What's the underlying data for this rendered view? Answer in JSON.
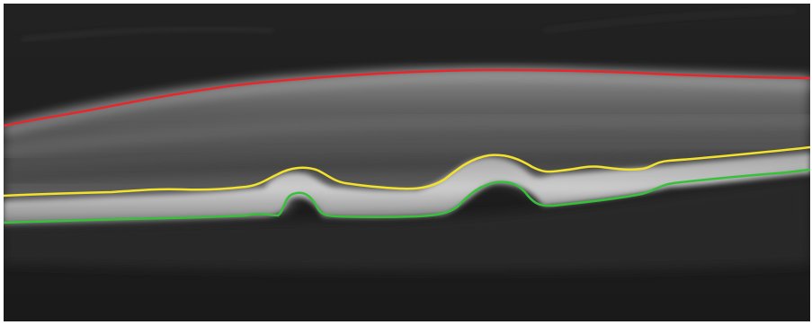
{
  "image": {
    "kind": "retinal-oct-bscan",
    "background_color": "#1c1c1c",
    "tissue_color": "#8a8a8a",
    "boundaries": [
      {
        "id": "ilm",
        "color": "#e8262b"
      },
      {
        "id": "inner-rpe",
        "color": "#f2e22e"
      },
      {
        "id": "bruch-membrane",
        "color": "#37c13a"
      }
    ]
  }
}
